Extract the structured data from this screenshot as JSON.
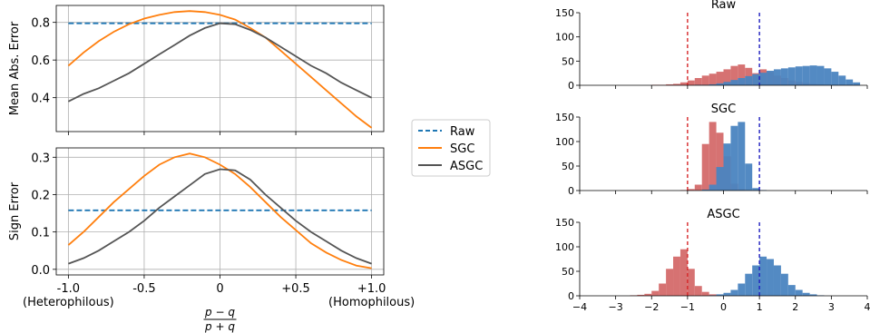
{
  "chart_data": [
    {
      "type": "line",
      "ylabel": "Mean Abs. Error",
      "xlim": [
        -1.08,
        1.08
      ],
      "ylim": [
        0.22,
        0.89
      ],
      "yticks": [
        0.4,
        0.6,
        0.8
      ],
      "ytick_labels": [
        "0.4",
        "0.6",
        "0.8"
      ],
      "grid": true,
      "series": [
        {
          "name": "Raw",
          "color": "#1f77b4",
          "style": "dashed",
          "points": [
            [
              -1.0,
              0.795
            ],
            [
              1.0,
              0.795
            ]
          ]
        },
        {
          "name": "SGC",
          "color": "#ff7f0e",
          "style": "solid",
          "points": [
            [
              -1.0,
              0.57
            ],
            [
              -0.9,
              0.64
            ],
            [
              -0.8,
              0.7
            ],
            [
              -0.7,
              0.75
            ],
            [
              -0.6,
              0.79
            ],
            [
              -0.5,
              0.82
            ],
            [
              -0.4,
              0.84
            ],
            [
              -0.3,
              0.855
            ],
            [
              -0.2,
              0.86
            ],
            [
              -0.1,
              0.855
            ],
            [
              0.0,
              0.84
            ],
            [
              0.1,
              0.815
            ],
            [
              0.2,
              0.77
            ],
            [
              0.3,
              0.72
            ],
            [
              0.4,
              0.65
            ],
            [
              0.5,
              0.58
            ],
            [
              0.6,
              0.51
            ],
            [
              0.7,
              0.44
            ],
            [
              0.8,
              0.37
            ],
            [
              0.9,
              0.3
            ],
            [
              1.0,
              0.24
            ]
          ]
        },
        {
          "name": "ASGC",
          "color": "#555555",
          "style": "solid",
          "points": [
            [
              -1.0,
              0.38
            ],
            [
              -0.9,
              0.42
            ],
            [
              -0.8,
              0.45
            ],
            [
              -0.7,
              0.49
            ],
            [
              -0.6,
              0.53
            ],
            [
              -0.5,
              0.58
            ],
            [
              -0.4,
              0.63
            ],
            [
              -0.3,
              0.68
            ],
            [
              -0.2,
              0.73
            ],
            [
              -0.1,
              0.77
            ],
            [
              0.0,
              0.795
            ],
            [
              0.1,
              0.79
            ],
            [
              0.2,
              0.76
            ],
            [
              0.3,
              0.72
            ],
            [
              0.4,
              0.67
            ],
            [
              0.5,
              0.62
            ],
            [
              0.6,
              0.57
            ],
            [
              0.7,
              0.53
            ],
            [
              0.8,
              0.48
            ],
            [
              0.9,
              0.44
            ],
            [
              1.0,
              0.4
            ]
          ]
        }
      ]
    },
    {
      "type": "line",
      "ylabel": "Sign Error",
      "xlim": [
        -1.08,
        1.08
      ],
      "ylim": [
        -0.015,
        0.325
      ],
      "yticks": [
        0.0,
        0.1,
        0.2,
        0.3
      ],
      "ytick_labels": [
        "0.0",
        "0.1",
        "0.2",
        "0.3"
      ],
      "xticks": [
        -1.0,
        -0.5,
        0.0,
        0.5,
        1.0
      ],
      "xtick_labels": [
        "-1.0",
        "-0.5",
        "0",
        "+0.5",
        "+1.0"
      ],
      "xtick_sublabels": [
        "(Heterophilous)",
        "(Homophilous)"
      ],
      "xlabel_numerator": "p − q",
      "xlabel_denominator": "p + q",
      "grid": true,
      "series": [
        {
          "name": "Raw",
          "color": "#1f77b4",
          "style": "dashed",
          "points": [
            [
              -1.0,
              0.158
            ],
            [
              1.0,
              0.158
            ]
          ]
        },
        {
          "name": "SGC",
          "color": "#ff7f0e",
          "style": "solid",
          "points": [
            [
              -1.0,
              0.065
            ],
            [
              -0.9,
              0.1
            ],
            [
              -0.8,
              0.14
            ],
            [
              -0.7,
              0.18
            ],
            [
              -0.6,
              0.215
            ],
            [
              -0.5,
              0.25
            ],
            [
              -0.4,
              0.28
            ],
            [
              -0.3,
              0.3
            ],
            [
              -0.2,
              0.31
            ],
            [
              -0.1,
              0.3
            ],
            [
              0.0,
              0.28
            ],
            [
              0.1,
              0.255
            ],
            [
              0.2,
              0.22
            ],
            [
              0.3,
              0.18
            ],
            [
              0.4,
              0.14
            ],
            [
              0.5,
              0.105
            ],
            [
              0.6,
              0.07
            ],
            [
              0.7,
              0.045
            ],
            [
              0.8,
              0.025
            ],
            [
              0.9,
              0.01
            ],
            [
              1.0,
              0.003
            ]
          ]
        },
        {
          "name": "ASGC",
          "color": "#555555",
          "style": "solid",
          "points": [
            [
              -1.0,
              0.015
            ],
            [
              -0.9,
              0.03
            ],
            [
              -0.8,
              0.05
            ],
            [
              -0.7,
              0.075
            ],
            [
              -0.6,
              0.1
            ],
            [
              -0.5,
              0.13
            ],
            [
              -0.4,
              0.165
            ],
            [
              -0.3,
              0.195
            ],
            [
              -0.2,
              0.225
            ],
            [
              -0.1,
              0.255
            ],
            [
              0.0,
              0.268
            ],
            [
              0.1,
              0.265
            ],
            [
              0.2,
              0.24
            ],
            [
              0.3,
              0.2
            ],
            [
              0.4,
              0.165
            ],
            [
              0.5,
              0.13
            ],
            [
              0.6,
              0.1
            ],
            [
              0.7,
              0.075
            ],
            [
              0.8,
              0.05
            ],
            [
              0.9,
              0.03
            ],
            [
              1.0,
              0.015
            ]
          ]
        }
      ]
    },
    {
      "type": "bar",
      "title": "Raw",
      "xlim": [
        -4,
        4
      ],
      "ylim": [
        0,
        150
      ],
      "yticks": [
        0,
        50,
        100,
        150
      ],
      "ytick_labels": [
        "0",
        "50",
        "100",
        "150"
      ],
      "bin_start": -3.6,
      "bin_width": 0.2,
      "vlines": [
        {
          "x": -1,
          "color": "#d62728"
        },
        {
          "x": 1,
          "color": "#1f1fbf"
        }
      ],
      "series": [
        {
          "name": "",
          "color": "#d46a6a",
          "values": [
            0,
            0,
            0,
            0,
            0,
            0,
            0,
            0,
            1,
            1,
            2,
            3,
            6,
            10,
            15,
            20,
            24,
            28,
            33,
            40,
            43,
            36,
            25,
            33,
            28,
            20,
            15,
            10,
            7,
            5,
            3,
            2,
            1,
            1,
            0,
            0,
            0
          ]
        },
        {
          "name": "",
          "color": "#4a84c0",
          "values": [
            0,
            0,
            0,
            0,
            0,
            0,
            0,
            0,
            0,
            0,
            0,
            0,
            0,
            0,
            1,
            1,
            2,
            4,
            7,
            11,
            15,
            19,
            23,
            26,
            30,
            33,
            35,
            37,
            39,
            40,
            41,
            40,
            35,
            28,
            20,
            12,
            6
          ]
        }
      ]
    },
    {
      "type": "bar",
      "title": "SGC",
      "xlim": [
        -4,
        4
      ],
      "ylim": [
        0,
        150
      ],
      "yticks": [
        0,
        50,
        100,
        150
      ],
      "ytick_labels": [
        "0",
        "50",
        "100",
        "150"
      ],
      "bin_start": -1.6,
      "bin_width": 0.2,
      "vlines": [
        {
          "x": -1,
          "color": "#d62728"
        },
        {
          "x": 1,
          "color": "#1f1fbf"
        }
      ],
      "series": [
        {
          "name": "",
          "color": "#d46a6a",
          "values": [
            0,
            0,
            1,
            3,
            12,
            95,
            140,
            118,
            70,
            14,
            3,
            1,
            0,
            0
          ]
        },
        {
          "name": "",
          "color": "#4a84c0",
          "values": [
            0,
            0,
            0,
            0,
            0,
            2,
            12,
            48,
            96,
            132,
            140,
            55,
            5,
            1
          ]
        }
      ]
    },
    {
      "type": "bar",
      "title": "ASGC",
      "xlim": [
        -4,
        4
      ],
      "ylim": [
        0,
        150
      ],
      "yticks": [
        0,
        50,
        100,
        150
      ],
      "ytick_labels": [
        "0",
        "50",
        "100",
        "150"
      ],
      "xticks": [
        -4,
        -3,
        -2,
        -1,
        0,
        1,
        2,
        3,
        4
      ],
      "xtick_labels": [
        "−4",
        "−3",
        "−2",
        "−1",
        "0",
        "1",
        "2",
        "3",
        "4"
      ],
      "bin_start": -3.0,
      "bin_width": 0.2,
      "vlines": [
        {
          "x": -1,
          "color": "#d62728"
        },
        {
          "x": 1,
          "color": "#1f1fbf"
        }
      ],
      "series": [
        {
          "name": "",
          "color": "#d46a6a",
          "values": [
            0,
            0,
            1,
            2,
            4,
            10,
            25,
            55,
            80,
            95,
            55,
            20,
            8,
            3,
            1,
            0,
            0,
            0,
            0,
            0,
            0,
            0,
            0,
            0,
            0,
            0,
            0,
            0,
            0,
            0
          ]
        },
        {
          "name": "",
          "color": "#4a84c0",
          "values": [
            0,
            0,
            0,
            0,
            0,
            0,
            0,
            0,
            0,
            0,
            0,
            0,
            0,
            1,
            3,
            6,
            12,
            25,
            45,
            62,
            80,
            75,
            62,
            45,
            22,
            12,
            6,
            3,
            1,
            0
          ]
        }
      ]
    }
  ],
  "legend": {
    "items": [
      {
        "label": "Raw",
        "color": "#1f77b4",
        "style": "dashed"
      },
      {
        "label": "SGC",
        "color": "#ff7f0e",
        "style": "solid"
      },
      {
        "label": "ASGC",
        "color": "#555555",
        "style": "solid"
      }
    ]
  }
}
